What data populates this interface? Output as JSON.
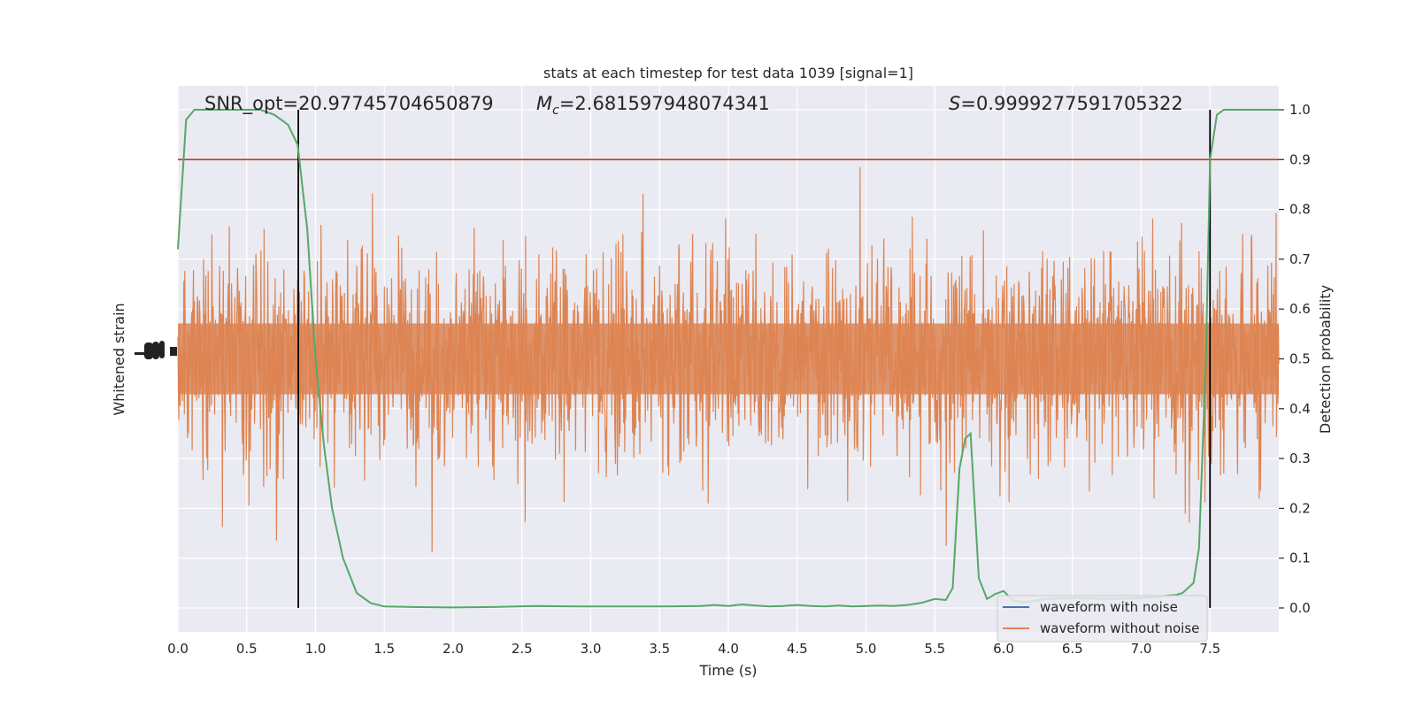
{
  "chart_data": {
    "type": "line",
    "title": "stats at each timestep for test data 1039 [signal=1]",
    "xlabel": "Time (s)",
    "ylabel_left": "Whitened strain",
    "ylabel_right": "Detection probability",
    "xlim": [
      0.0,
      8.0
    ],
    "ylim_right": [
      -0.048,
      1.048
    ],
    "x_ticks": [
      "0.0",
      "0.5",
      "1.0",
      "1.5",
      "2.0",
      "2.5",
      "3.0",
      "3.5",
      "4.0",
      "4.5",
      "5.0",
      "5.5",
      "6.0",
      "6.5",
      "7.0",
      "7.5"
    ],
    "x_tick_values": [
      0.0,
      0.5,
      1.0,
      1.5,
      2.0,
      2.5,
      3.0,
      3.5,
      4.0,
      4.5,
      5.0,
      5.5,
      6.0,
      6.5,
      7.0,
      7.5
    ],
    "y_right_ticks": [
      "0.0",
      "0.1",
      "0.2",
      "0.3",
      "0.4",
      "0.5",
      "0.6",
      "0.7",
      "0.8",
      "0.9",
      "1.0"
    ],
    "y_right_tick_values": [
      0.0,
      0.1,
      0.2,
      0.3,
      0.4,
      0.5,
      0.6,
      0.7,
      0.8,
      0.9,
      1.0
    ],
    "grid": true,
    "legend_position": "lower-right",
    "annotations": {
      "snr_prefix": "SNR_opt=",
      "snr_value": "20.97745704650879",
      "mc_symbol": "M",
      "mc_subscript": "c",
      "mc_value": "=2.681597948074341",
      "s_symbol": "S",
      "s_value": "=0.9999277591705322"
    },
    "threshold": {
      "y": 0.9,
      "color": "#c0392b"
    },
    "vertical_markers": [
      0.875,
      7.5
    ],
    "series": [
      {
        "name": "waveform with noise",
        "color": "#4c72b0",
        "kind": "noise"
      },
      {
        "name": "waveform without noise",
        "color": "#dd8452",
        "kind": "noise"
      },
      {
        "color": "#55a868",
        "kind": "probability",
        "x": [
          0.0,
          0.06,
          0.12,
          0.2,
          0.3,
          0.45,
          0.6,
          0.7,
          0.8,
          0.87,
          0.94,
          1.0,
          1.06,
          1.12,
          1.2,
          1.3,
          1.4,
          1.5,
          1.7,
          2.0,
          2.3,
          2.6,
          2.9,
          3.2,
          3.5,
          3.8,
          3.9,
          4.0,
          4.1,
          4.2,
          4.3,
          4.4,
          4.5,
          4.6,
          4.7,
          4.8,
          4.9,
          5.0,
          5.1,
          5.2,
          5.3,
          5.4,
          5.5,
          5.58,
          5.63,
          5.68,
          5.72,
          5.76,
          5.82,
          5.88,
          5.94,
          6.0,
          6.06,
          6.12,
          6.2,
          6.3,
          6.5,
          6.8,
          7.0,
          7.1,
          7.2,
          7.25,
          7.3,
          7.38,
          7.42,
          7.47,
          7.5,
          7.55,
          7.6,
          7.7,
          8.0
        ],
        "y": [
          0.72,
          0.98,
          1.0,
          1.0,
          1.0,
          1.0,
          1.0,
          0.99,
          0.97,
          0.93,
          0.76,
          0.5,
          0.33,
          0.2,
          0.1,
          0.03,
          0.01,
          0.003,
          0.002,
          0.001,
          0.002,
          0.004,
          0.003,
          0.003,
          0.003,
          0.004,
          0.006,
          0.004,
          0.007,
          0.005,
          0.003,
          0.004,
          0.006,
          0.004,
          0.003,
          0.005,
          0.003,
          0.004,
          0.005,
          0.004,
          0.006,
          0.01,
          0.018,
          0.016,
          0.04,
          0.28,
          0.34,
          0.35,
          0.06,
          0.018,
          0.028,
          0.034,
          0.017,
          0.012,
          0.013,
          0.018,
          0.02,
          0.018,
          0.02,
          0.022,
          0.025,
          0.026,
          0.03,
          0.05,
          0.12,
          0.5,
          0.9,
          0.99,
          1.0,
          1.0,
          1.0
        ]
      }
    ]
  }
}
